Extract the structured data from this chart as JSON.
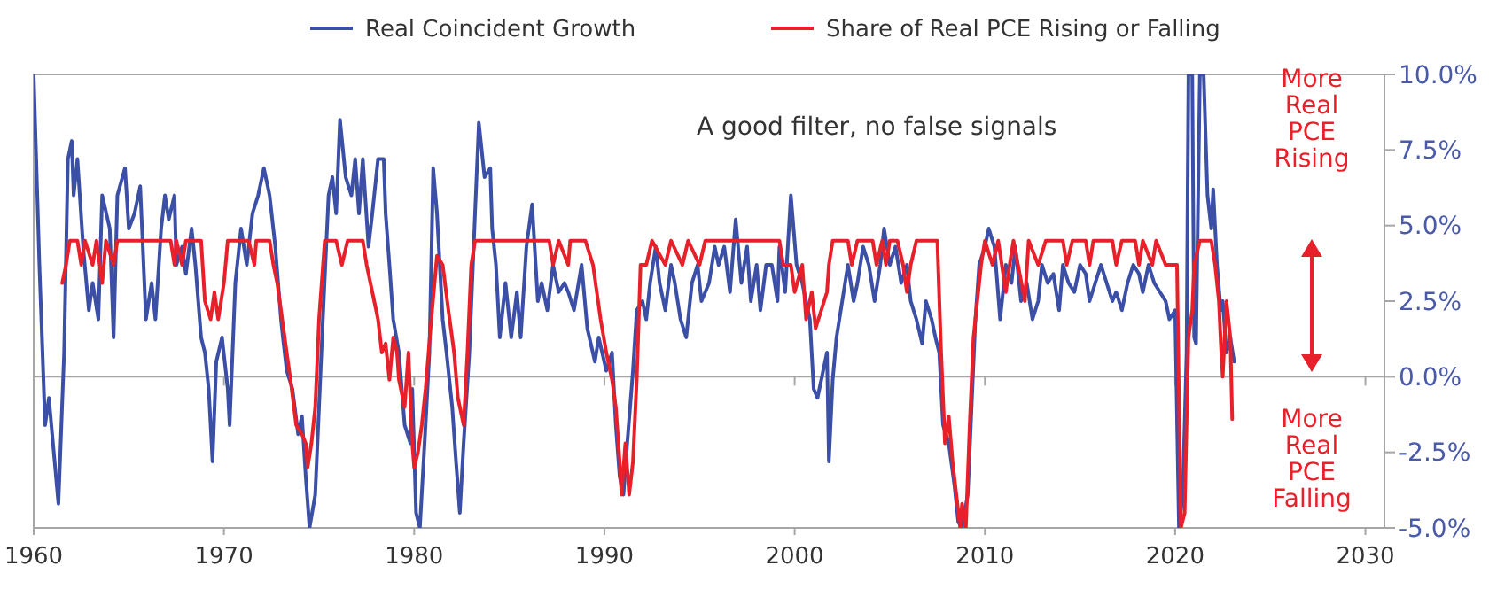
{
  "chart_data": {
    "type": "line",
    "xlim": [
      1960,
      2031
    ],
    "xticks": [
      1960,
      1970,
      1980,
      1990,
      2000,
      2010,
      2020,
      2030
    ],
    "ylim": [
      -5,
      10
    ],
    "yticks": [
      {
        "value": -5,
        "label": "-5.0%"
      },
      {
        "value": -2.5,
        "label": "-2.5%"
      },
      {
        "value": 0,
        "label": "0.0%"
      },
      {
        "value": 2.5,
        "label": "2.5%"
      },
      {
        "value": 5,
        "label": "5.0%"
      },
      {
        "value": 7.5,
        "label": "7.5%"
      },
      {
        "value": 10,
        "label": "10.0%"
      }
    ],
    "grid": false,
    "legend": "top",
    "line_style": "solid",
    "marker": "none",
    "ref_lines": [
      {
        "axis": "y",
        "value": 0,
        "color": "#a6a6a6"
      }
    ],
    "annotations": [
      "A good filter, no false signals",
      "More Real PCE Rising",
      "More Real PCE Falling"
    ],
    "series": [
      {
        "name": "Real Coincident Growth",
        "color": "#3a4fa5",
        "x": [
          1960.0,
          1960.3,
          1960.6,
          1960.8,
          1961.1,
          1961.3,
          1961.6,
          1961.8,
          1962.0,
          1962.1,
          1962.3,
          1962.6,
          1962.9,
          1963.1,
          1963.4,
          1963.6,
          1964.0,
          1964.2,
          1964.4,
          1964.8,
          1965.0,
          1965.3,
          1965.6,
          1965.9,
          1966.2,
          1966.4,
          1966.7,
          1966.9,
          1967.1,
          1967.4,
          1967.5,
          1967.8,
          1968.0,
          1968.3,
          1968.5,
          1968.8,
          1969.0,
          1969.2,
          1969.4,
          1969.6,
          1969.9,
          1970.2,
          1970.3,
          1970.6,
          1970.9,
          1971.2,
          1971.5,
          1971.8,
          1972.1,
          1972.4,
          1972.7,
          1973.0,
          1973.1,
          1973.3,
          1973.6,
          1973.9,
          1974.1,
          1974.3,
          1974.5,
          1974.8,
          1975.0,
          1975.2,
          1975.5,
          1975.7,
          1975.9,
          1976.1,
          1976.4,
          1976.7,
          1976.9,
          1977.1,
          1977.3,
          1977.6,
          1977.8,
          1978.1,
          1978.4,
          1978.5,
          1978.7,
          1978.9,
          1979.2,
          1979.5,
          1979.8,
          1979.9,
          1980.1,
          1980.3,
          1980.6,
          1980.8,
          1981.0,
          1981.2,
          1981.5,
          1981.7,
          1982.0,
          1982.2,
          1982.4,
          1982.6,
          1982.9,
          1983.2,
          1983.4,
          1983.7,
          1984.0,
          1984.1,
          1984.3,
          1984.5,
          1984.8,
          1985.1,
          1985.4,
          1985.6,
          1985.9,
          1986.2,
          1986.5,
          1986.7,
          1987.0,
          1987.3,
          1987.6,
          1987.9,
          1988.1,
          1988.4,
          1988.8,
          1989.1,
          1989.5,
          1989.7,
          1990.1,
          1990.4,
          1990.6,
          1990.8,
          1991.0,
          1991.2,
          1991.5,
          1991.7,
          1992.0,
          1992.2,
          1992.4,
          1992.7,
          1992.9,
          1993.2,
          1993.5,
          1993.7,
          1994.0,
          1994.3,
          1994.6,
          1994.9,
          1995.1,
          1995.5,
          1995.8,
          1996.0,
          1996.3,
          1996.6,
          1996.9,
          1997.2,
          1997.5,
          1997.7,
          1998.0,
          1998.2,
          1998.5,
          1998.8,
          1999.1,
          1999.2,
          1999.5,
          1999.8,
          2000.1,
          2000.4,
          2000.6,
          2000.8,
          2001.0,
          2001.2,
          2001.4,
          2001.7,
          2001.8,
          2002.0,
          2002.2,
          2002.5,
          2002.8,
          2003.1,
          2003.3,
          2003.6,
          2003.9,
          2004.2,
          2004.5,
          2004.7,
          2005.0,
          2005.3,
          2005.6,
          2005.9,
          2006.1,
          2006.4,
          2006.7,
          2006.9,
          2007.2,
          2007.4,
          2007.6,
          2007.8,
          2008.1,
          2008.4,
          2008.6,
          2008.8,
          2009.1,
          2009.3,
          2009.5,
          2009.7,
          2010.0,
          2010.2,
          2010.5,
          2010.8,
          2011.1,
          2011.4,
          2011.6,
          2011.9,
          2012.2,
          2012.5,
          2012.8,
          2013.0,
          2013.3,
          2013.6,
          2013.9,
          2014.1,
          2014.4,
          2014.7,
          2015.0,
          2015.3,
          2015.5,
          2015.8,
          2016.1,
          2016.4,
          2016.7,
          2016.9,
          2017.2,
          2017.5,
          2017.8,
          2018.1,
          2018.3,
          2018.6,
          2018.9,
          2019.2,
          2019.5,
          2019.7,
          2020.0,
          2020.2,
          2020.4,
          2020.6,
          2020.7,
          2020.9,
          2021.0,
          2021.1,
          2021.3,
          2021.5,
          2021.7,
          2021.9,
          2022.0,
          2022.2,
          2022.4,
          2022.5,
          2022.7,
          2022.9,
          2023.1
        ],
        "values": [
          10,
          3.7,
          -1.6,
          -0.7,
          -2.8,
          -4.2,
          0.8,
          7.2,
          7.8,
          6.0,
          7.2,
          4.3,
          2.2,
          3.1,
          1.9,
          6.0,
          4.9,
          1.3,
          6.0,
          6.9,
          4.9,
          5.4,
          6.3,
          1.9,
          3.1,
          1.9,
          4.9,
          6.0,
          5.2,
          6.0,
          3.7,
          4.3,
          3.4,
          4.9,
          3.7,
          1.3,
          0.8,
          -0.4,
          -2.8,
          0.5,
          1.3,
          -0.4,
          -1.6,
          3.1,
          4.9,
          3.7,
          5.4,
          6.0,
          6.9,
          6.0,
          4.3,
          1.9,
          1.3,
          0.2,
          -0.4,
          -1.9,
          -1.3,
          -3.3,
          -5,
          -3.9,
          -1.0,
          1.9,
          6.0,
          6.6,
          5.4,
          8.5,
          6.6,
          6.0,
          7.2,
          5.4,
          7.2,
          4.3,
          5.4,
          7.2,
          7.2,
          5.4,
          3.7,
          1.9,
          0.8,
          -1.6,
          -2.2,
          -0.4,
          -4.5,
          -5,
          -1.6,
          0.8,
          6.9,
          5.4,
          1.9,
          0.8,
          -1.0,
          -2.8,
          -4.5,
          -2.2,
          0.8,
          5.4,
          8.4,
          6.6,
          6.9,
          4.9,
          3.7,
          1.3,
          3.1,
          1.3,
          2.8,
          1.3,
          4.3,
          5.7,
          2.5,
          3.1,
          2.2,
          3.7,
          2.8,
          3.1,
          2.8,
          2.2,
          3.7,
          1.6,
          0.5,
          1.3,
          0.2,
          0.8,
          -1.6,
          -3.3,
          -3.9,
          -2.2,
          0.2,
          2.2,
          2.5,
          1.9,
          3.1,
          4.3,
          3.1,
          2.2,
          3.7,
          3.1,
          1.9,
          1.3,
          3.1,
          3.7,
          2.5,
          3.1,
          4.3,
          3.7,
          4.3,
          2.8,
          5.2,
          3.1,
          4.3,
          2.5,
          3.7,
          2.2,
          3.7,
          3.7,
          2.5,
          4.3,
          2.8,
          6.0,
          3.7,
          3.1,
          2.5,
          1.9,
          -0.4,
          -0.7,
          -0.1,
          0.8,
          -2.8,
          -0.1,
          1.3,
          2.5,
          3.7,
          2.5,
          3.1,
          4.3,
          3.7,
          2.5,
          3.7,
          4.9,
          3.7,
          4.3,
          3.1,
          3.7,
          2.5,
          1.9,
          1.1,
          2.5,
          1.9,
          1.3,
          0.8,
          -1.6,
          -2.2,
          -3.6,
          -4.8,
          -5,
          -3.9,
          -1.0,
          1.9,
          3.7,
          4.3,
          4.9,
          4.3,
          1.9,
          3.7,
          3.1,
          4.3,
          2.5,
          3.1,
          1.9,
          2.5,
          3.7,
          3.1,
          3.4,
          2.2,
          3.7,
          3.1,
          2.8,
          3.7,
          3.4,
          2.5,
          3.1,
          3.7,
          3.1,
          2.5,
          2.8,
          2.2,
          3.1,
          3.7,
          3.4,
          2.8,
          3.7,
          3.1,
          2.8,
          2.5,
          1.9,
          2.2,
          -5,
          -3.9,
          0.8,
          10,
          10,
          1.3,
          1.1,
          10,
          10,
          6.0,
          4.9,
          6.2,
          3.7,
          2.2,
          2.5,
          0.8,
          1.3,
          0.5
        ]
      },
      {
        "name": "Share of Real PCE Rising or Falling",
        "color": "#e8202a",
        "x": [
          1961.5,
          1961.7,
          1961.9,
          1962.3,
          1962.5,
          1962.7,
          1963.1,
          1963.3,
          1963.6,
          1963.8,
          1964.2,
          1964.4,
          1967.2,
          1967.4,
          1967.5,
          1967.8,
          1968.0,
          1968.8,
          1969.0,
          1969.3,
          1969.5,
          1969.7,
          1970.0,
          1970.2,
          1971.3,
          1971.6,
          1971.7,
          1972.4,
          1972.6,
          1972.8,
          1973.0,
          1973.3,
          1973.5,
          1973.8,
          1974.1,
          1974.3,
          1974.4,
          1974.6,
          1974.8,
          1975.0,
          1975.3,
          1975.9,
          1976.2,
          1976.5,
          1977.3,
          1977.5,
          1977.8,
          1978.1,
          1978.3,
          1978.5,
          1978.7,
          1978.9,
          1979.1,
          1979.2,
          1979.5,
          1979.7,
          1979.9,
          1980.0,
          1980.2,
          1980.4,
          1980.6,
          1980.9,
          1981.2,
          1981.5,
          1981.8,
          1982.1,
          1982.3,
          1982.5,
          1982.6,
          1982.8,
          1983.0,
          1983.2,
          1987.1,
          1987.3,
          1987.6,
          1988.1,
          1988.2,
          1989.0,
          1989.4,
          1989.6,
          1989.8,
          1990.1,
          1990.4,
          1990.6,
          1990.8,
          1990.9,
          1991.1,
          1991.3,
          1991.5,
          1991.7,
          1991.9,
          1992.2,
          1992.5,
          1993.2,
          1993.5,
          1994.1,
          1994.4,
          1995.0,
          1995.3,
          1999.2,
          1999.4,
          1999.8,
          2000.0,
          2000.4,
          2000.6,
          2000.9,
          2001.1,
          2001.4,
          2001.7,
          2001.8,
          2002.0,
          2002.8,
          2003.0,
          2003.3,
          2004.1,
          2004.3,
          2004.6,
          2004.8,
          2005.0,
          2005.4,
          2005.7,
          2005.9,
          2006.1,
          2006.4,
          2007.5,
          2007.7,
          2007.9,
          2008.1,
          2008.3,
          2008.5,
          2008.7,
          2008.8,
          2009.0,
          2009.2,
          2009.4,
          2009.6,
          2009.8,
          2010.0,
          2010.4,
          2010.7,
          2011.1,
          2011.3,
          2011.5,
          2012.1,
          2012.3,
          2012.8,
          2013.2,
          2014.1,
          2014.3,
          2014.6,
          2015.3,
          2015.5,
          2015.7,
          2016.7,
          2016.9,
          2017.2,
          2017.9,
          2018.1,
          2018.3,
          2018.8,
          2019.0,
          2019.5,
          2020.1,
          2020.3,
          2020.5,
          2020.7,
          2020.9,
          2021.0,
          2021.3,
          2021.9,
          2022.1,
          2022.3,
          2022.4,
          2022.5,
          2022.7,
          2022.9,
          2023.0
        ],
        "values": [
          3.1,
          3.7,
          4.5,
          4.5,
          3.7,
          4.5,
          3.7,
          4.5,
          3.1,
          4.5,
          3.7,
          4.5,
          4.5,
          3.7,
          4.5,
          3.7,
          4.5,
          4.5,
          2.5,
          1.9,
          2.8,
          1.9,
          3.1,
          4.5,
          4.5,
          3.7,
          4.5,
          4.5,
          3.7,
          3.1,
          2.2,
          0.8,
          -0.1,
          -1.6,
          -1.9,
          -2.2,
          -3.0,
          -2.2,
          -1.0,
          1.9,
          4.5,
          4.5,
          3.7,
          4.5,
          4.5,
          3.7,
          2.8,
          1.9,
          0.8,
          1.1,
          -0.1,
          1.3,
          0.8,
          -0.1,
          -1.0,
          0.8,
          -2.2,
          -3.0,
          -2.5,
          -1.6,
          -0.4,
          1.9,
          4.0,
          3.7,
          2.2,
          0.8,
          -0.7,
          -1.3,
          -1.6,
          0.8,
          3.7,
          4.5,
          4.5,
          3.7,
          4.5,
          3.7,
          4.5,
          4.5,
          3.7,
          2.8,
          1.9,
          0.8,
          -0.1,
          -1.0,
          -2.8,
          -3.9,
          -2.2,
          -3.9,
          -2.8,
          -0.1,
          3.7,
          3.7,
          4.5,
          3.7,
          4.5,
          3.7,
          4.5,
          3.7,
          4.5,
          4.5,
          3.7,
          3.7,
          2.8,
          3.7,
          1.9,
          2.8,
          1.6,
          2.2,
          2.8,
          3.7,
          4.5,
          4.5,
          3.7,
          4.5,
          4.5,
          3.7,
          4.5,
          3.7,
          4.5,
          4.5,
          3.7,
          2.8,
          3.7,
          4.5,
          4.5,
          0.8,
          -2.2,
          -1.3,
          -2.8,
          -3.9,
          -5,
          -4.2,
          -5,
          -1.6,
          1.3,
          2.5,
          3.7,
          4.5,
          3.7,
          4.5,
          2.8,
          3.7,
          4.5,
          2.5,
          4.5,
          3.7,
          4.5,
          4.5,
          3.7,
          4.5,
          4.5,
          3.7,
          4.5,
          4.5,
          3.7,
          4.5,
          4.5,
          3.7,
          4.5,
          3.7,
          4.5,
          3.7,
          3.7,
          -5,
          -4.5,
          1.3,
          2.2,
          3.7,
          4.5,
          4.5,
          3.7,
          2.5,
          1.1,
          0,
          2.5,
          1.3,
          -1.4
        ]
      }
    ]
  }
}
